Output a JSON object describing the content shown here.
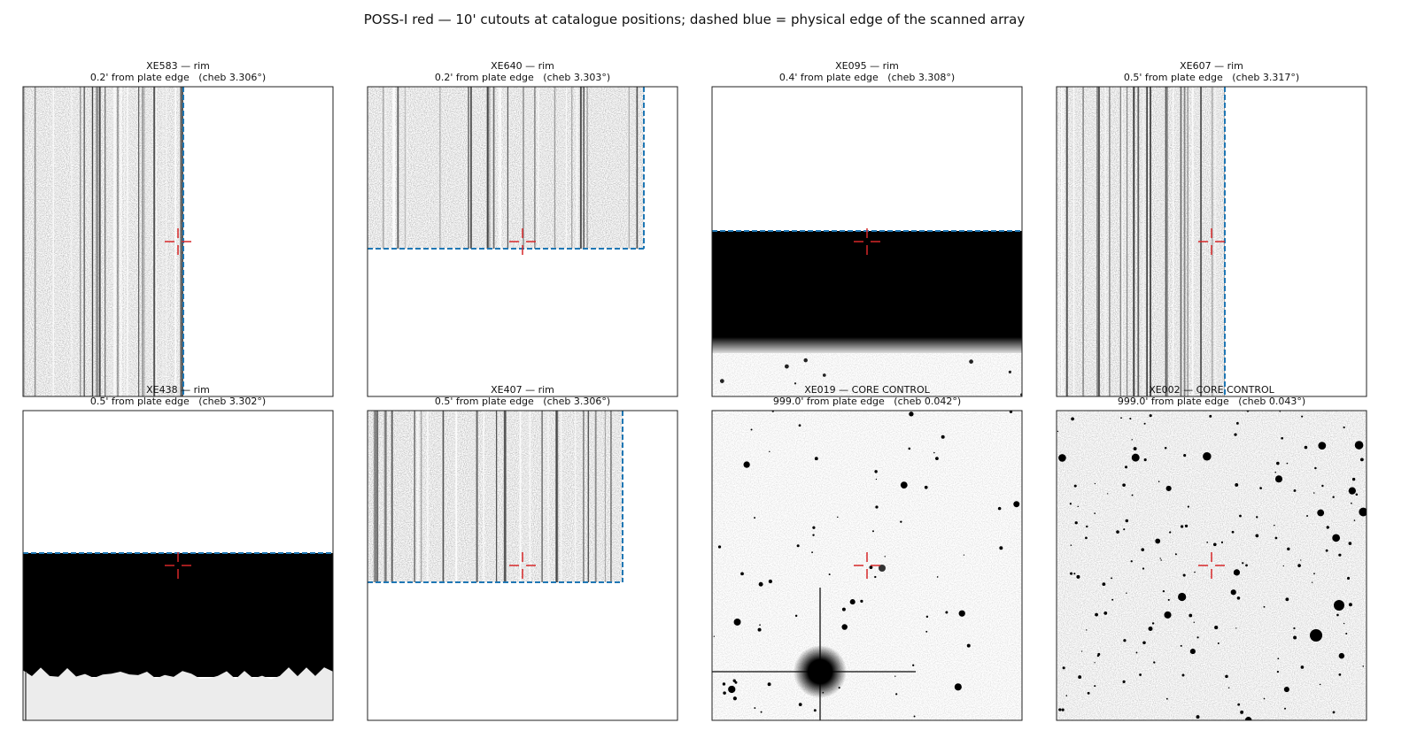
{
  "title": "POSS-I red — 10' cutouts at catalogue positions; dashed blue = physical edge of the scanned array",
  "panels": [
    {
      "name": "XE583 — rim",
      "subtitle": "0.2' from plate edge   (cheb 3.306°)"
    },
    {
      "name": "XE640 — rim",
      "subtitle": "0.2' from plate edge   (cheb 3.303°)"
    },
    {
      "name": "XE095 — rim",
      "subtitle": "0.4' from plate edge   (cheb 3.308°)"
    },
    {
      "name": "XE607 — rim",
      "subtitle": "0.5' from plate edge   (cheb 3.317°)"
    },
    {
      "name": "XE438 — rim",
      "subtitle": "0.5' from plate edge   (cheb 3.302°)"
    },
    {
      "name": "XE407 — rim",
      "subtitle": "0.5' from plate edge   (cheb 3.306°)"
    },
    {
      "name": "XE019 — CORE CONTROL",
      "subtitle": "999.0' from plate edge   (cheb 0.042°)"
    },
    {
      "name": "XE002 — CORE CONTROL",
      "subtitle": "999.0' from plate edge   (cheb 0.043°)"
    }
  ]
}
